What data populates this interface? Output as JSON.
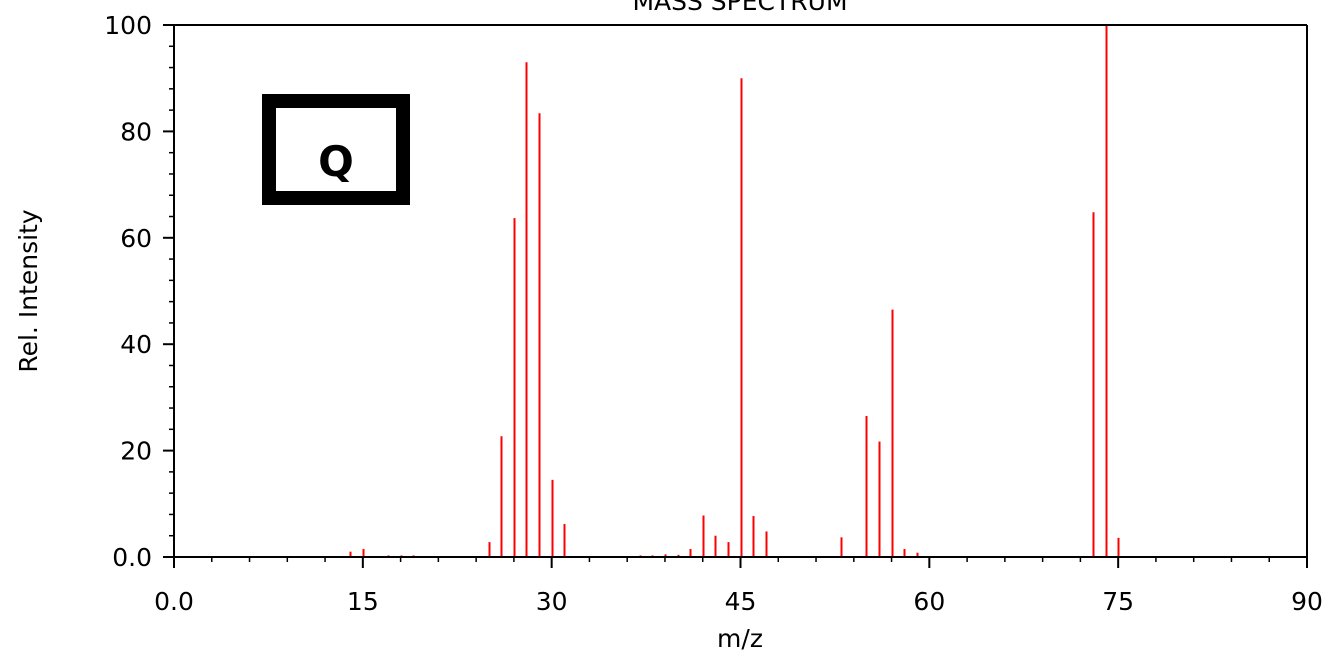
{
  "chart_data": {
    "type": "bar",
    "title": "MASS SPECTRUM",
    "xlabel": "m/z",
    "ylabel": "Rel. Intensity",
    "xlim": [
      0,
      90
    ],
    "ylim": [
      0,
      100
    ],
    "x_ticks": [
      0,
      15,
      30,
      45,
      60,
      75,
      90
    ],
    "x_tick_labels": [
      "0.0",
      "15",
      "30",
      "45",
      "60",
      "75",
      "90"
    ],
    "y_ticks": [
      0,
      20,
      40,
      60,
      80,
      100
    ],
    "y_tick_labels": [
      "0.0",
      "20",
      "40",
      "60",
      "80",
      "100"
    ],
    "grid": false,
    "legend": "none",
    "color": "#ff0000",
    "series": [
      {
        "x": [
          14,
          15,
          17,
          18,
          19,
          25,
          26,
          27,
          28,
          29,
          30,
          31,
          37,
          38,
          39,
          40,
          41,
          42,
          43,
          44,
          45,
          46,
          47,
          53,
          55,
          56,
          57,
          58,
          59,
          73,
          74,
          75
        ],
        "values": [
          1.0,
          1.5,
          0.3,
          0.3,
          0.3,
          2.8,
          22.7,
          63.7,
          93.0,
          83.4,
          14.5,
          6.2,
          0.3,
          0.3,
          0.5,
          0.4,
          1.5,
          7.8,
          4.0,
          2.8,
          90.0,
          7.7,
          4.8,
          3.7,
          26.5,
          21.7,
          46.5,
          1.5,
          0.8,
          64.8,
          100,
          3.6
        ]
      }
    ]
  },
  "overlay": {
    "label": "Q"
  }
}
